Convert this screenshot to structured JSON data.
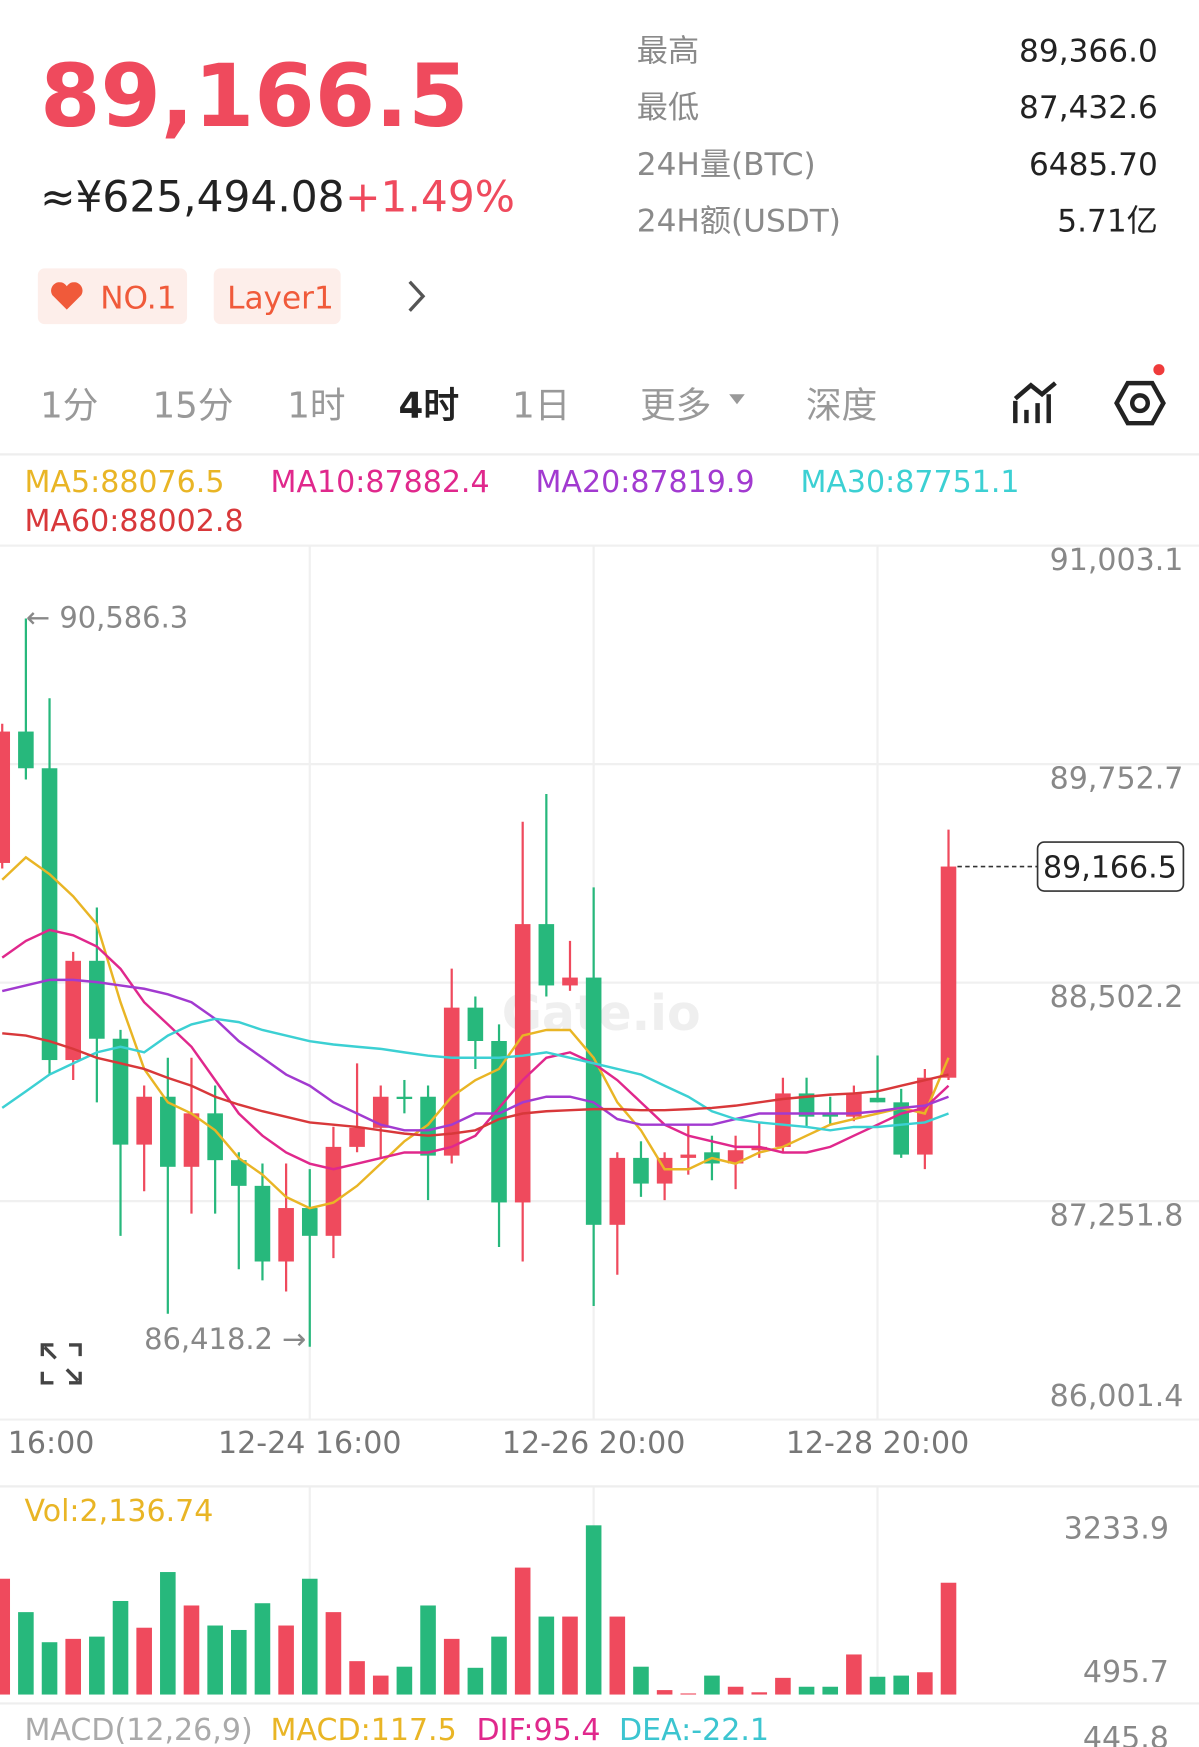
{
  "header": {
    "price": "89,166.5",
    "cny": "≈¥625,494.08",
    "change": "+1.49%"
  },
  "stats": [
    {
      "label": "最高",
      "value": "89,366.0"
    },
    {
      "label": "最低",
      "value": "87,432.6"
    },
    {
      "label": "24H量(BTC)",
      "value": "6485.70"
    },
    {
      "label": "24H额(USDT)",
      "value": "5.71亿"
    }
  ],
  "tags": [
    "NO.1",
    "Layer1"
  ],
  "tabs": [
    "1分",
    "15分",
    "1时",
    "4时",
    "1日",
    "更多",
    "深度"
  ],
  "active_tab": 3,
  "watermark": "Gate.io",
  "chart_data": {
    "type": "candlestick",
    "up_color": "#ef4a5d",
    "down_color": "#27b87c",
    "x": [
      null,
      "16:00",
      null,
      null,
      null,
      null,
      null,
      null,
      null,
      null,
      null,
      null,
      null,
      "12-24 16:00",
      null,
      null,
      null,
      null,
      null,
      null,
      null,
      null,
      null,
      null,
      null,
      "12-26 20:00",
      null,
      null,
      null,
      null,
      null,
      null,
      null,
      null,
      null,
      null,
      null,
      "12-28 20:00",
      null,
      null,
      null
    ],
    "open": [
      89187,
      89939,
      89729,
      88059,
      88627,
      88181,
      87575,
      87849,
      87448,
      87754,
      87486,
      87339,
      86906,
      87212,
      87053,
      87562,
      87671,
      87849,
      87849,
      87512,
      88359,
      88168,
      87244,
      88837,
      88486,
      88531,
      87116,
      87499,
      87352,
      87499,
      87531,
      87467,
      87543,
      87562,
      87868,
      87754,
      87735,
      87843,
      87817,
      87518,
      87958
    ],
    "high": [
      89984,
      90586.3,
      90130,
      88678,
      88932,
      88232,
      87913,
      88072,
      88072,
      87913,
      87531,
      87467,
      87467,
      87435,
      87677,
      88040,
      87913,
      87945,
      87913,
      88582,
      88423,
      88263,
      89423,
      89582,
      88741,
      89047,
      87531,
      87594,
      87531,
      87690,
      87626,
      87626,
      87703,
      87958,
      87958,
      87849,
      87913,
      88085,
      87894,
      88008,
      89378
    ],
    "low": [
      89155,
      89665,
      87977,
      87945,
      87817,
      87053,
      87308,
      86607,
      87180,
      87180,
      86862,
      86798,
      86734,
      86418.2,
      86925,
      87531,
      87499,
      87754,
      87257,
      87467,
      88008,
      86989,
      86906,
      88423,
      88455,
      86651,
      86830,
      87276,
      87257,
      87403,
      87371,
      87320,
      87499,
      87531,
      87671,
      87690,
      87709,
      87817,
      87499,
      87435,
      87945
    ],
    "close": [
      89939,
      89729,
      88059,
      88627,
      88181,
      87575,
      87849,
      87448,
      87754,
      87486,
      87339,
      86906,
      87212,
      87053,
      87562,
      87671,
      87849,
      87836,
      87512,
      88359,
      88168,
      87244,
      88837,
      88486,
      88531,
      87116,
      87499,
      87352,
      87499,
      87518,
      87467,
      87543,
      87562,
      87868,
      87735,
      87735,
      87868,
      87817,
      87518,
      87958,
      89166.5
    ],
    "ylim": [
      86001.4,
      91003.1
    ],
    "yticks": [
      {
        "value": 91003.1,
        "label": "91,003.1"
      },
      {
        "value": 89752.7,
        "label": "89,752.7"
      },
      {
        "value": 88502.2,
        "label": "88,502.2"
      },
      {
        "value": 87251.8,
        "label": "87,251.8"
      },
      {
        "value": 86001.4,
        "label": "86,001.4"
      }
    ],
    "grid": true,
    "high_label": "← 90,586.3",
    "low_label": "86,418.2 →",
    "ma": [
      {
        "name": "MA5:88076.5",
        "color": "#e9b525",
        "values": [
          89091,
          89219,
          89123,
          88996,
          88836,
          88390,
          88008,
          87817,
          87753,
          87657,
          87498,
          87403,
          87275,
          87211,
          87243,
          87339,
          87466,
          87594,
          87689,
          87849,
          87944,
          88008,
          88199,
          88231,
          88231,
          88072,
          87817,
          87657,
          87434,
          87434,
          87498,
          87466,
          87530,
          87562,
          87626,
          87689,
          87721,
          87753,
          87785,
          87753,
          88072
        ]
      },
      {
        "name": "MA10:87882.4",
        "color": "#e0288c",
        "values": [
          88645,
          88741,
          88804,
          88773,
          88709,
          88581,
          88390,
          88263,
          88135,
          87944,
          87753,
          87626,
          87530,
          87466,
          87434,
          87466,
          87498,
          87530,
          87530,
          87562,
          87626,
          87785,
          87944,
          88072,
          88103,
          88040,
          87944,
          87817,
          87689,
          87626,
          87594,
          87562,
          87562,
          87530,
          87530,
          87562,
          87626,
          87689,
          87753,
          87785,
          87912
        ]
      },
      {
        "name": "MA20:87819.9",
        "color": "#a23ad0",
        "values": [
          88454,
          88486,
          88518,
          88518,
          88505,
          88486,
          88467,
          88435,
          88390,
          88295,
          88167,
          88072,
          87976,
          87912,
          87817,
          87753,
          87689,
          87657,
          87657,
          87689,
          87753,
          87753,
          87817,
          87849,
          87849,
          87817,
          87721,
          87689,
          87689,
          87689,
          87689,
          87721,
          87753,
          87753,
          87753,
          87753,
          87753,
          87766,
          87785,
          87798,
          87849
        ]
      },
      {
        "name": "MA30:87751.1",
        "color": "#3cd0d3",
        "values": [
          87785,
          87880,
          87976,
          88040,
          88103,
          88135,
          88103,
          88199,
          88263,
          88295,
          88276,
          88231,
          88199,
          88167,
          88148,
          88135,
          88123,
          88103,
          88084,
          88072,
          88072,
          88072,
          88084,
          88103,
          88072,
          88040,
          88008,
          87976,
          87912,
          87849,
          87766,
          87721,
          87702,
          87689,
          87676,
          87657,
          87676,
          87676,
          87689,
          87702,
          87753
        ]
      },
      {
        "name": "MA60:88002.8",
        "color": "#d8383a",
        "values": [
          88212,
          88199,
          88167,
          88123,
          88072,
          88040,
          88008,
          87957,
          87912,
          87849,
          87804,
          87766,
          87734,
          87702,
          87689,
          87676,
          87657,
          87638,
          87626,
          87638,
          87657,
          87721,
          87753,
          87766,
          87772,
          87778,
          87778,
          87772,
          87772,
          87778,
          87785,
          87798,
          87817,
          87836,
          87849,
          87861,
          87868,
          87880,
          87912,
          87944,
          87976
        ]
      }
    ],
    "volume": {
      "label": "Vol:2,136.74",
      "label_color": "#e9b525",
      "values": [
        2213,
        1575,
        1000,
        1064,
        1107,
        1788,
        1277,
        2341,
        1702,
        1319,
        1234,
        1745,
        1319,
        2213,
        1575,
        638,
        362,
        532,
        1702,
        1064,
        511,
        1107,
        2426,
        1490,
        1490,
        3233.9,
        1490,
        532,
        85,
        21,
        362,
        149,
        43,
        319,
        149,
        149,
        766,
        340,
        362,
        426,
        2136.74
      ],
      "ylim": [
        0,
        3233.9
      ],
      "yticks": [
        3233.9,
        495.7
      ]
    },
    "macd": {
      "title": "MACD(12,26,9)",
      "macd": "MACD:117.5",
      "dif": "DIF:95.4",
      "dea": "DEA:-22.1",
      "tick": 445.8
    }
  }
}
